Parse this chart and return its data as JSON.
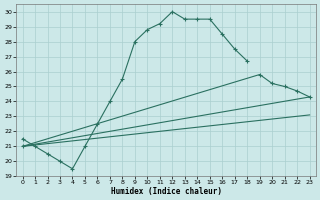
{
  "xlabel": "Humidex (Indice chaleur)",
  "bg_color": "#cce8e8",
  "grid_color": "#aacfcf",
  "line_color": "#2a7060",
  "xlim": [
    -0.5,
    23.5
  ],
  "ylim": [
    19,
    30.5
  ],
  "yticks": [
    19,
    20,
    21,
    22,
    23,
    24,
    25,
    26,
    27,
    28,
    29,
    30
  ],
  "xticks": [
    0,
    1,
    2,
    3,
    4,
    5,
    6,
    7,
    8,
    9,
    10,
    11,
    12,
    13,
    14,
    15,
    16,
    17,
    18,
    19,
    20,
    21,
    22,
    23
  ],
  "curve1_x": [
    0,
    1,
    2,
    3,
    4,
    5,
    6,
    7,
    8,
    9,
    10,
    11,
    12,
    13,
    14,
    15,
    16,
    17,
    18
  ],
  "curve1_y": [
    21.5,
    21.0,
    20.5,
    20.0,
    19.5,
    21.0,
    22.5,
    24.0,
    25.5,
    28.0,
    28.8,
    29.2,
    30.0,
    29.5,
    29.5,
    29.5,
    28.5,
    27.5,
    26.7
  ],
  "curve2_x": [
    0,
    19,
    20,
    21,
    22,
    23
  ],
  "curve2_y": [
    21.0,
    25.8,
    25.2,
    25.0,
    24.7,
    24.3
  ],
  "line3_x": [
    0,
    23
  ],
  "line3_y": [
    21.0,
    24.3
  ],
  "line4_x": [
    0,
    23
  ],
  "line4_y": [
    21.0,
    23.1
  ]
}
